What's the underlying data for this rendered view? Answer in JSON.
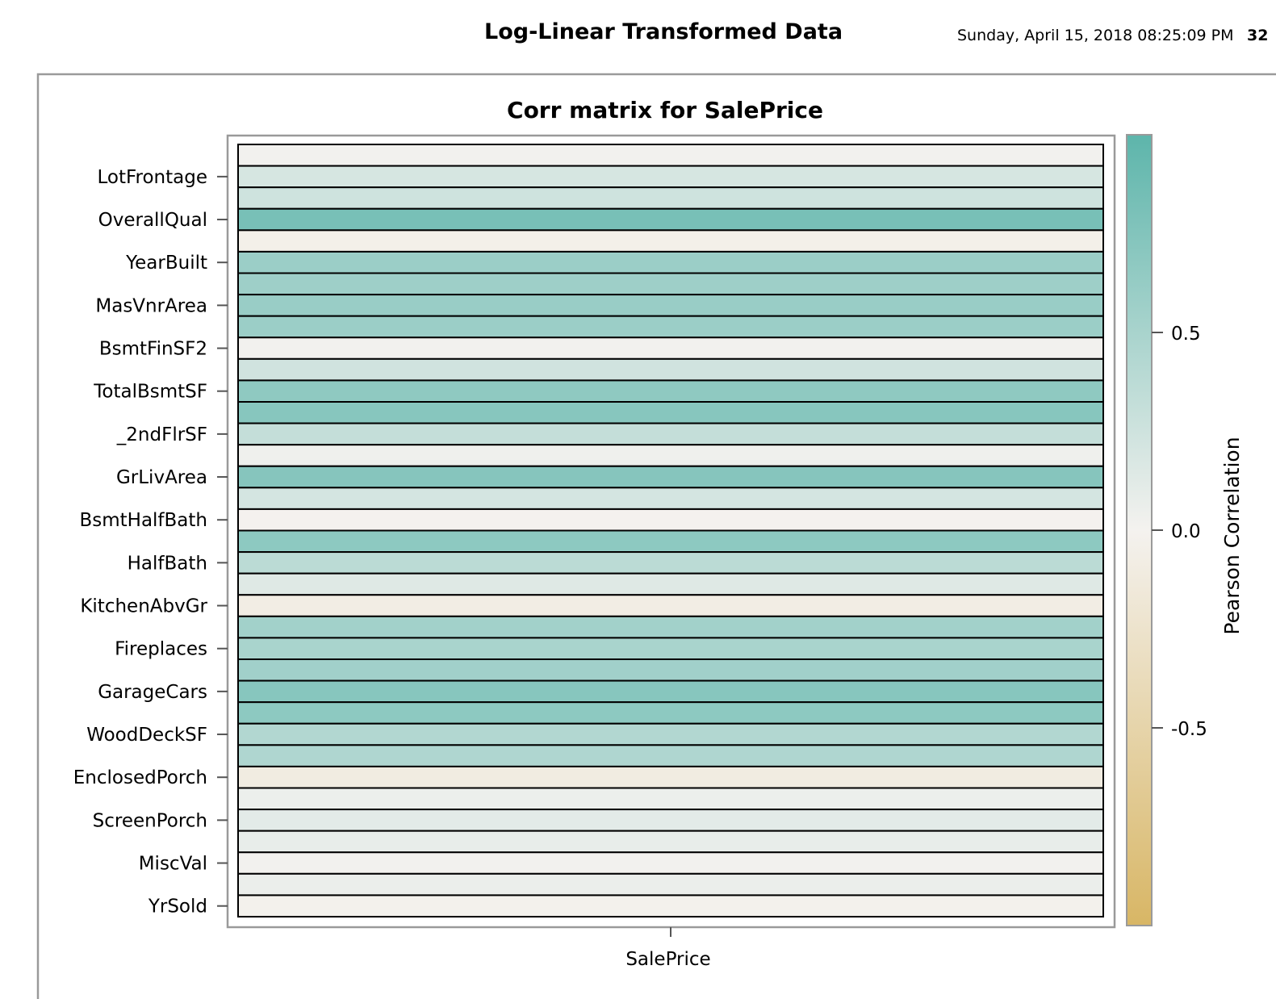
{
  "header": {
    "title": "Log-Linear Transformed Data",
    "datetime": "Sunday, April 15, 2018 08:25:09 PM",
    "page_number": "32"
  },
  "colors": {
    "positive": "#5db5ab",
    "neutral": "#f4f2ef",
    "negative": "#d8b665",
    "cell_border": "#000000",
    "frame": "#9a9a9a"
  },
  "chart_data": {
    "type": "heatmap",
    "title": "Corr matrix for SalePrice",
    "x_categories": [
      "SalePrice"
    ],
    "xlabel": "",
    "ylabel": "",
    "y_tick_labels": [
      "LotFrontage",
      "OverallQual",
      "YearBuilt",
      "MasVnrArea",
      "BsmtFinSF2",
      "TotalBsmtSF",
      "_2ndFlrSF",
      "GrLivArea",
      "BsmtHalfBath",
      "HalfBath",
      "KitchenAbvGr",
      "Fireplaces",
      "GarageCars",
      "WoodDeckSF",
      "EnclosedPorch",
      "ScreenPorch",
      "MiscVal",
      "YrSold"
    ],
    "rows": [
      {
        "tick_label": "",
        "value": 0.01
      },
      {
        "tick_label": "LotFrontage",
        "value": 0.2
      },
      {
        "tick_label": "",
        "value": 0.25
      },
      {
        "tick_label": "OverallQual",
        "value": 0.82
      },
      {
        "tick_label": "",
        "value": -0.04
      },
      {
        "tick_label": "YearBuilt",
        "value": 0.59
      },
      {
        "tick_label": "",
        "value": 0.57
      },
      {
        "tick_label": "MasVnrArea",
        "value": 0.6
      },
      {
        "tick_label": "",
        "value": 0.59
      },
      {
        "tick_label": "BsmtFinSF2",
        "value": 0.01
      },
      {
        "tick_label": "",
        "value": 0.24
      },
      {
        "tick_label": "TotalBsmtSF",
        "value": 0.67
      },
      {
        "tick_label": "",
        "value": 0.72
      },
      {
        "tick_label": "_2ndFlrSF",
        "value": 0.32
      },
      {
        "tick_label": "",
        "value": 0.03
      },
      {
        "tick_label": "GrLivArea",
        "value": 0.73
      },
      {
        "tick_label": "",
        "value": 0.21
      },
      {
        "tick_label": "BsmtHalfBath",
        "value": -0.01
      },
      {
        "tick_label": "",
        "value": 0.68
      },
      {
        "tick_label": "HalfBath",
        "value": 0.38
      },
      {
        "tick_label": "",
        "value": 0.14
      },
      {
        "tick_label": "KitchenAbvGr",
        "value": -0.08
      },
      {
        "tick_label": "",
        "value": 0.54
      },
      {
        "tick_label": "Fireplaces",
        "value": 0.5
      },
      {
        "tick_label": "",
        "value": 0.55
      },
      {
        "tick_label": "GarageCars",
        "value": 0.72
      },
      {
        "tick_label": "",
        "value": 0.68
      },
      {
        "tick_label": "WoodDeckSF",
        "value": 0.44
      },
      {
        "tick_label": "",
        "value": 0.46
      },
      {
        "tick_label": "EnclosedPorch",
        "value": -0.1
      },
      {
        "tick_label": "",
        "value": 0.05
      },
      {
        "tick_label": "ScreenPorch",
        "value": 0.11
      },
      {
        "tick_label": "",
        "value": 0.08
      },
      {
        "tick_label": "MiscVal",
        "value": 0.01
      },
      {
        "tick_label": "",
        "value": 0.06
      },
      {
        "tick_label": "YrSold",
        "value": -0.02
      }
    ],
    "colorbar": {
      "label": "Pearson Correlation",
      "range": [
        -1,
        1
      ],
      "ticks": [
        0.5,
        0.0,
        -0.5
      ],
      "tick_labels": [
        "0.5",
        "0.0",
        "-0.5"
      ],
      "placement": "right"
    },
    "grid": false
  }
}
